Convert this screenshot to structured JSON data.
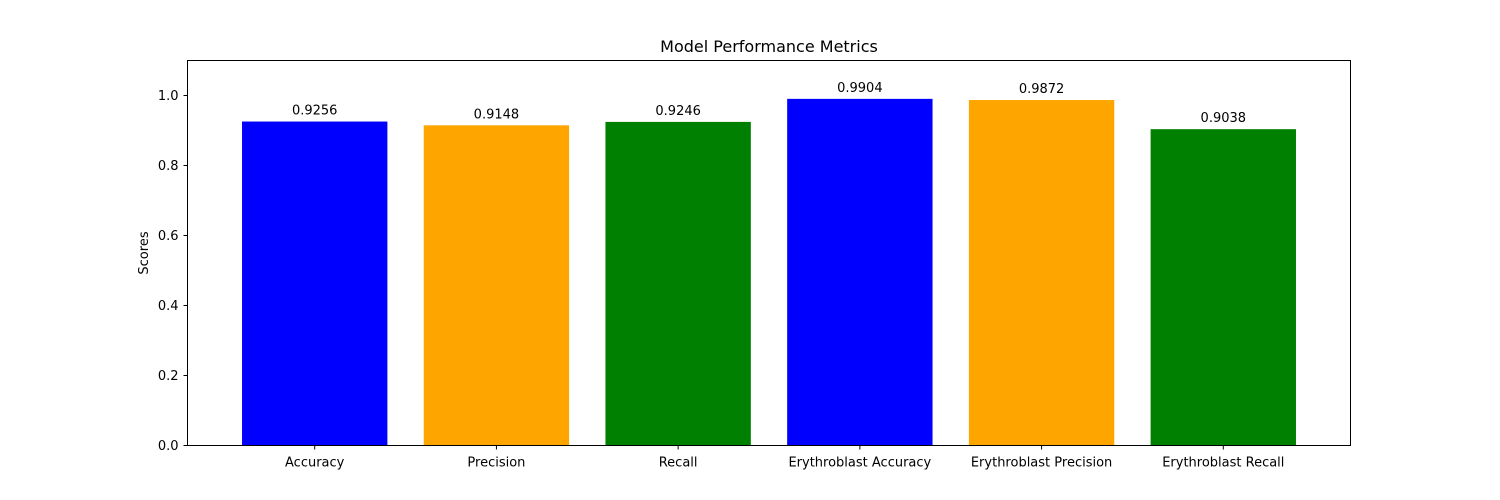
{
  "chart_data": {
    "type": "bar",
    "title": "Model Performance Metrics",
    "xlabel": "",
    "ylabel": "Scores",
    "ylim": [
      0,
      1.1
    ],
    "yticks": [
      "0.0",
      "0.2",
      "0.4",
      "0.6",
      "0.8",
      "1.0"
    ],
    "categories": [
      "Accuracy",
      "Precision",
      "Recall",
      "Erythroblast Accuracy",
      "Erythroblast Precision",
      "Erythroblast Recall"
    ],
    "values": [
      0.9256,
      0.9148,
      0.9246,
      0.9904,
      0.9872,
      0.9038
    ],
    "value_labels": [
      "0.9256",
      "0.9148",
      "0.9246",
      "0.9904",
      "0.9872",
      "0.9038"
    ],
    "colors": [
      "#0000ff",
      "#ffa500",
      "#008000",
      "#0000ff",
      "#ffa500",
      "#008000"
    ],
    "grid": false,
    "legend": "none"
  }
}
